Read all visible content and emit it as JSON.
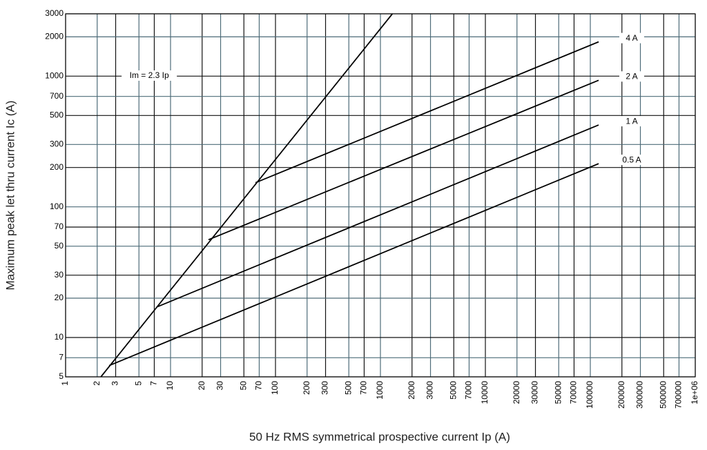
{
  "chart_data": {
    "type": "line",
    "x_label": "50 Hz RMS symmetrical prospective current Ip (A)",
    "y_label": "Maximum peak let thru current Ic (A)",
    "log_x": true,
    "log_y": true,
    "grid": true,
    "xlim": [
      1,
      1000000
    ],
    "ylim": [
      5,
      3000
    ],
    "xticks": [
      1,
      2,
      3,
      5,
      7,
      10,
      20,
      30,
      50,
      70,
      100,
      200,
      300,
      500,
      700,
      1000,
      2000,
      3000,
      5000,
      7000,
      10000,
      20000,
      30000,
      50000,
      70000,
      100000,
      200000,
      300000,
      500000,
      700000,
      {
        "value": 1000000,
        "label": "1e+06"
      }
    ],
    "yticks": [
      5,
      7,
      10,
      20,
      30,
      50,
      70,
      100,
      200,
      300,
      500,
      700,
      1000,
      2000,
      3000
    ],
    "series": [
      {
        "name": "Im = 2.3 Ip",
        "color": "#000000",
        "x": [
          2.17,
          1300
        ],
        "values": [
          5,
          3000
        ]
      },
      {
        "name": "4 A",
        "color": "#000000",
        "x": [
          64.5,
          120000
        ],
        "values": [
          153,
          1830
        ]
      },
      {
        "name": "2 A",
        "color": "#000000",
        "x": [
          23,
          120000
        ],
        "values": [
          56,
          930
        ]
      },
      {
        "name": "1 A",
        "color": "#000000",
        "x": [
          7.5,
          120000
        ],
        "values": [
          17.2,
          423
        ]
      },
      {
        "name": "0.5 A",
        "color": "#000000",
        "x": [
          2.6,
          120000
        ],
        "values": [
          6.1,
          214
        ]
      }
    ]
  }
}
